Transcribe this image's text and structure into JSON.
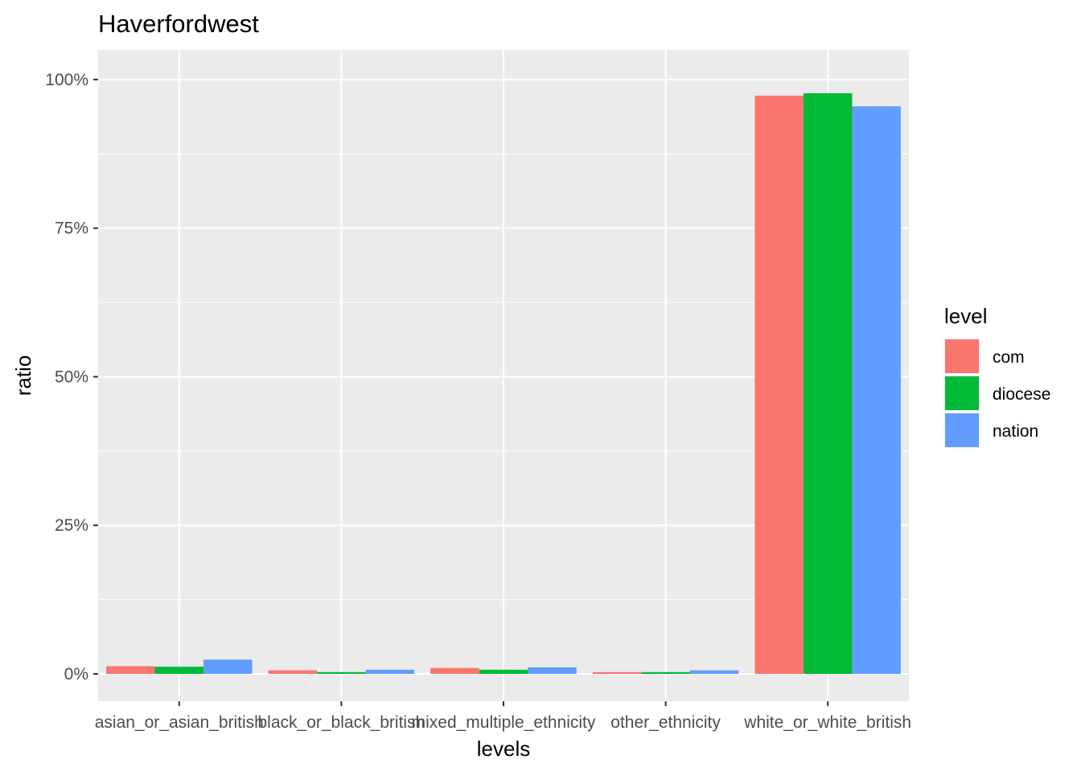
{
  "chart_data": {
    "type": "bar",
    "title": "Haverfordwest",
    "xlabel": "levels",
    "ylabel": "ratio",
    "categories": [
      "asian_or_asian_british",
      "black_or_black_british",
      "mixed_multiple_ethnicity",
      "other_ethnicity",
      "white_or_white_british"
    ],
    "series": [
      {
        "name": "com",
        "color": "#F8766D",
        "values": [
          0.013,
          0.006,
          0.01,
          0.003,
          0.973
        ]
      },
      {
        "name": "diocese",
        "color": "#00BA38",
        "values": [
          0.012,
          0.003,
          0.007,
          0.003,
          0.977
        ]
      },
      {
        "name": "nation",
        "color": "#619CFF",
        "values": [
          0.024,
          0.007,
          0.011,
          0.006,
          0.955
        ]
      }
    ],
    "ylim": [
      -0.046,
      1.05
    ],
    "yticks": [
      0,
      0.25,
      0.5,
      0.75,
      1.0
    ],
    "ytick_labels": [
      "0%",
      "25%",
      "50%",
      "75%",
      "100%"
    ],
    "grid": true,
    "legend": {
      "title": "level",
      "position": "right"
    },
    "panel_background": "#EBEBEB",
    "grid_color": "#FFFFFF"
  }
}
